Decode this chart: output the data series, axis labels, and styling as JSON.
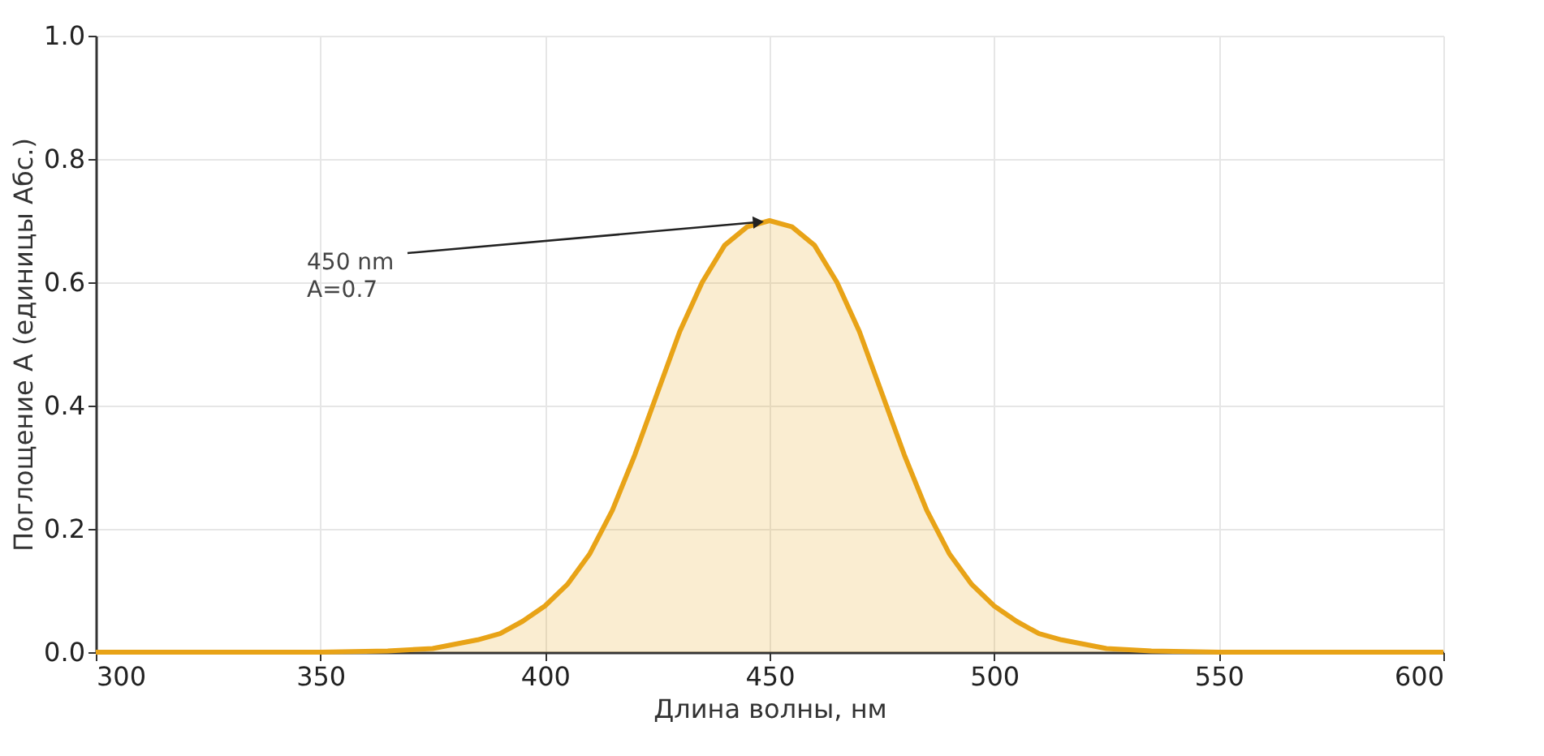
{
  "chart_data": {
    "type": "area",
    "xlabel": "Длина волны, нм",
    "ylabel": "Поглощение A (единицы Абс.)",
    "x": [
      300,
      350,
      365,
      375,
      385,
      390,
      395,
      400,
      405,
      410,
      415,
      420,
      425,
      430,
      435,
      440,
      445,
      450,
      455,
      460,
      465,
      470,
      475,
      480,
      485,
      490,
      495,
      500,
      505,
      510,
      515,
      525,
      535,
      550,
      600
    ],
    "series": [
      {
        "color": "#e8a317",
        "values": [
          0,
          0,
          0.002,
          0.006,
          0.02,
          0.03,
          0.05,
          0.075,
          0.11,
          0.16,
          0.23,
          0.32,
          0.42,
          0.52,
          0.6,
          0.66,
          0.69,
          0.7,
          0.69,
          0.66,
          0.6,
          0.52,
          0.42,
          0.32,
          0.23,
          0.16,
          0.11,
          0.075,
          0.05,
          0.03,
          0.02,
          0.006,
          0.002,
          0,
          0
        ]
      }
    ],
    "annotations": [
      {
        "text": "450 nm\nA=0.7",
        "x": 450,
        "y": 0.7
      }
    ],
    "xlim": [
      300,
      600
    ],
    "ylim": [
      0,
      1
    ],
    "xticks": [
      300,
      350,
      400,
      450,
      500,
      550,
      600
    ],
    "yticks": [
      {
        "value": 0,
        "label": "0.0"
      },
      0.2,
      0.4,
      0.6,
      0.8,
      {
        "value": 1,
        "label": "1.0"
      }
    ],
    "grid": true
  }
}
